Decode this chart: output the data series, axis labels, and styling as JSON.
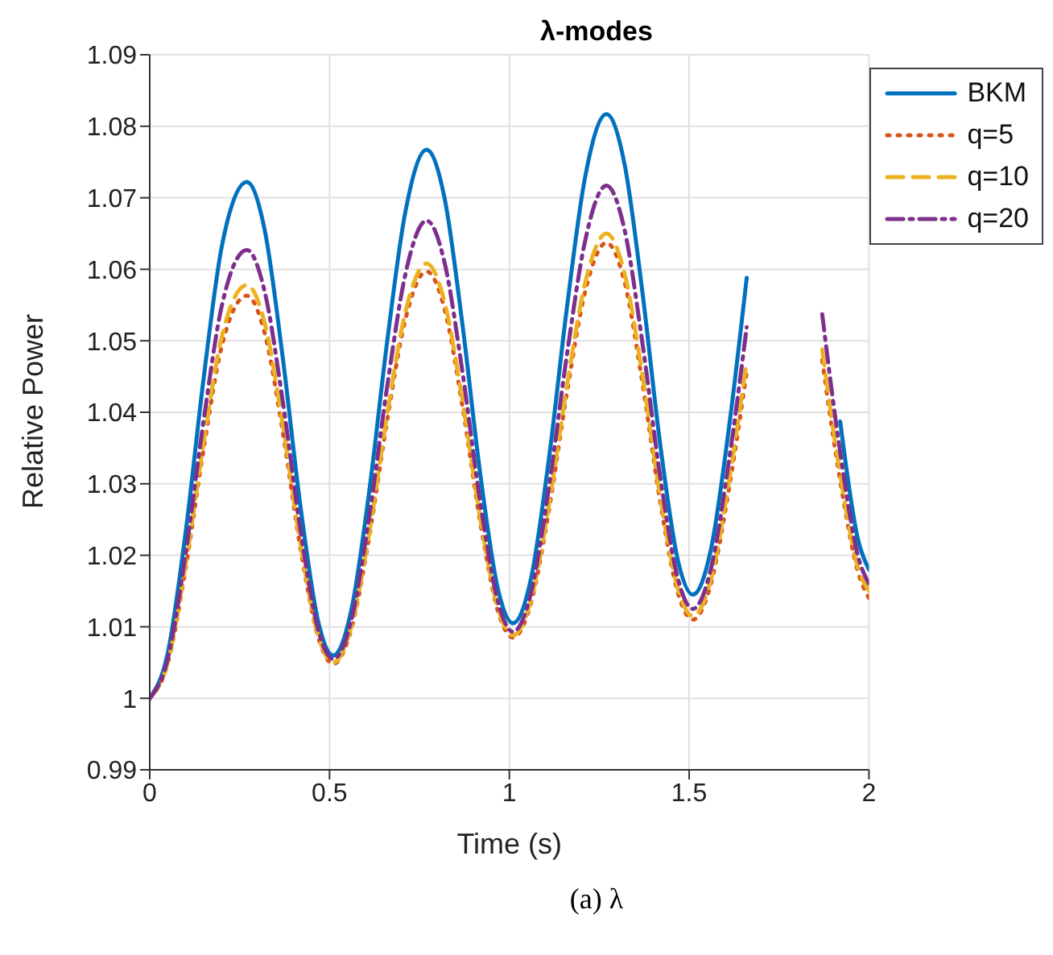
{
  "chart_data": {
    "type": "line",
    "title": "λ-modes",
    "xlabel": "Time (s)",
    "ylabel": "Relative Power",
    "annotations": [
      "(a) λ"
    ],
    "x": [
      0,
      0.05,
      0.1,
      0.15,
      0.2,
      0.27,
      0.32,
      0.37,
      0.42,
      0.47,
      0.51,
      0.56,
      0.61,
      0.66,
      0.71,
      0.77,
      0.82,
      0.87,
      0.92,
      0.97,
      1.01,
      1.06,
      1.11,
      1.16,
      1.21,
      1.27,
      1.32,
      1.37,
      1.42,
      1.47,
      1.51,
      1.56,
      1.61,
      1.66,
      1.71,
      1.77,
      1.82,
      1.87,
      1.92,
      1.97,
      2.0
    ],
    "series": [
      {
        "name": "BKM",
        "color": "#0072bd",
        "line_style": "solid",
        "values": [
          1.0,
          1.0063,
          1.0233,
          1.0448,
          1.0631,
          1.0722,
          1.0654,
          1.0476,
          1.0265,
          1.0104,
          1.006,
          1.0122,
          1.0288,
          1.0498,
          1.0678,
          1.0767,
          1.0699,
          1.0521,
          1.031,
          1.0149,
          1.0105,
          1.0167,
          1.0335,
          1.0546,
          1.0727,
          1.0817,
          1.0748,
          1.0568,
          1.0353,
          1.019,
          1.0145,
          1.0207,
          1.0376,
          1.0588,
          null,
          null,
          null,
          null,
          1.0387,
          1.0221,
          1.018
        ]
      },
      {
        "name": "q=5",
        "color": "#d95319",
        "line_style": "dotted",
        "values": [
          1.0,
          1.0049,
          1.0182,
          1.0349,
          1.0492,
          1.0563,
          1.051,
          1.0372,
          1.0207,
          1.0083,
          1.0048,
          1.0096,
          1.0225,
          1.0388,
          1.0528,
          1.0597,
          1.0544,
          1.0407,
          1.0243,
          1.0119,
          1.0085,
          1.0133,
          1.0263,
          1.0427,
          1.0567,
          1.0637,
          1.0583,
          1.0441,
          1.0273,
          1.0145,
          1.011,
          1.0159,
          1.0291,
          1.0457,
          null,
          null,
          null,
          1.0473,
          1.0304,
          1.0176,
          1.014
        ]
      },
      {
        "name": "q=10",
        "color": "#edb120",
        "line_style": "dashed",
        "values": [
          1.0,
          1.005,
          1.0187,
          1.0358,
          1.0505,
          1.0578,
          1.0524,
          1.0382,
          1.0213,
          1.0085,
          1.005,
          1.0099,
          1.023,
          1.0396,
          1.0538,
          1.0608,
          1.0554,
          1.0415,
          1.0249,
          1.0123,
          1.0088,
          1.0137,
          1.027,
          1.0436,
          1.0579,
          1.065,
          1.0595,
          1.0452,
          1.028,
          1.0151,
          1.0115,
          1.0165,
          1.0301,
          1.0472,
          null,
          null,
          null,
          1.0488,
          1.0313,
          1.0182,
          1.015
        ]
      },
      {
        "name": "q=20",
        "color": "#7e2f8e",
        "line_style": "dashdot",
        "values": [
          1.0,
          1.0055,
          1.0203,
          1.0389,
          1.0548,
          1.0627,
          1.0568,
          1.0415,
          1.0232,
          1.0093,
          1.0055,
          1.0108,
          1.0253,
          1.0435,
          1.0591,
          1.0668,
          1.0609,
          1.0455,
          1.0271,
          1.0132,
          1.0093,
          1.0147,
          1.0295,
          1.048,
          1.0638,
          1.0717,
          1.0656,
          1.0497,
          1.0308,
          1.0165,
          1.0125,
          1.018,
          1.033,
          1.0519,
          null,
          null,
          null,
          1.0537,
          1.0344,
          1.0198,
          1.016
        ]
      }
    ],
    "xlim": [
      0,
      2
    ],
    "xticks": [
      0,
      0.5,
      1,
      1.5,
      2
    ],
    "ylim": [
      0.99,
      1.09
    ],
    "yticks": [
      0.99,
      1,
      1.01,
      1.02,
      1.03,
      1.04,
      1.05,
      1.06,
      1.07,
      1.08,
      1.09
    ],
    "grid": true,
    "legend": "top right"
  }
}
